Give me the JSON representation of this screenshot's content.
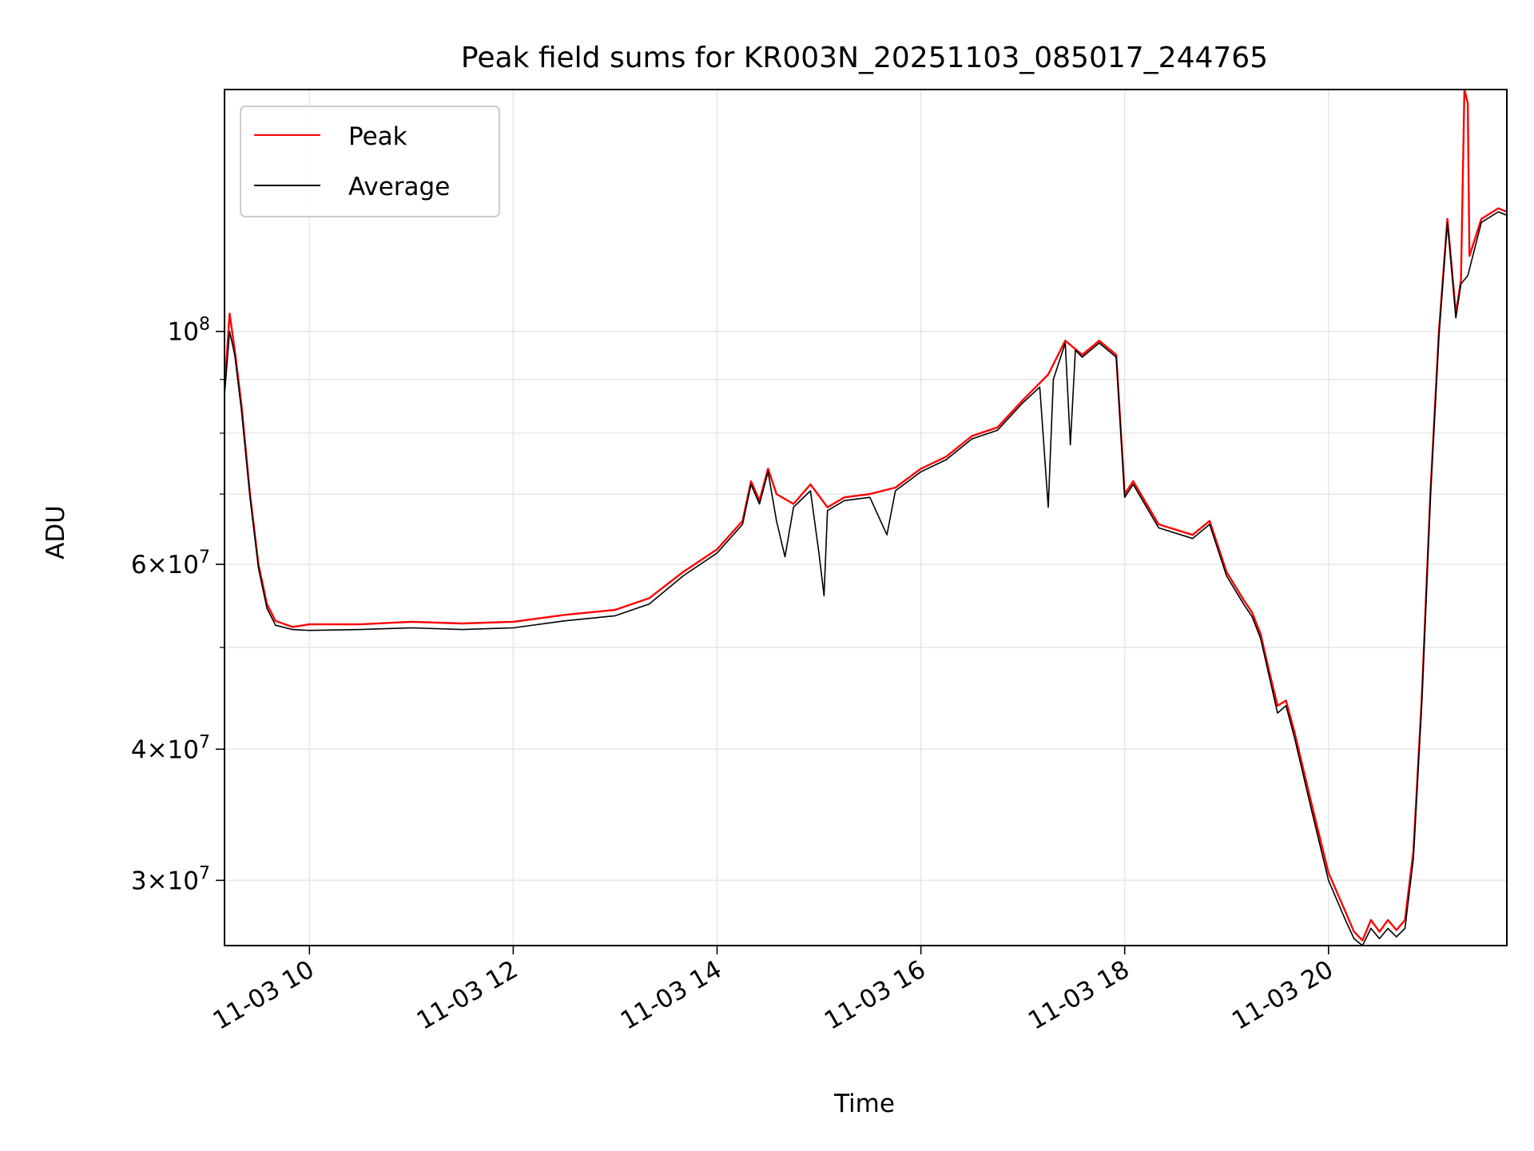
{
  "chart_data": {
    "type": "line",
    "title": "Peak field sums for KR003N_20251103_085017_244765",
    "xlabel": "Time",
    "ylabel": "ADU",
    "yscale": "log",
    "grid": true,
    "legend_position": "top-left",
    "xlim": [
      "11-03 09:10",
      "11-03 21:45"
    ],
    "ylim": [
      26000000,
      170000000
    ],
    "x_ticks": [
      "11-03 10",
      "11-03 12",
      "11-03 14",
      "11-03 16",
      "11-03 18",
      "11-03 20"
    ],
    "y_ticks": [
      {
        "value": 100000000,
        "mantissa": "",
        "exponent": "8"
      },
      {
        "value": 60000000,
        "mantissa": "6",
        "exponent": "7"
      },
      {
        "value": 40000000,
        "mantissa": "4",
        "exponent": "7"
      },
      {
        "value": 30000000,
        "mantissa": "3",
        "exponent": "7"
      }
    ],
    "y_minor_ticks": [
      50000000,
      70000000,
      80000000,
      90000000
    ],
    "series": [
      {
        "name": "Peak",
        "color": "#ff0000",
        "points": [
          [
            "11-03 09:10",
            88000000
          ],
          [
            "11-03 09:13",
            104000000
          ],
          [
            "11-03 09:16",
            96000000
          ],
          [
            "11-03 09:20",
            85000000
          ],
          [
            "11-03 09:25",
            70000000
          ],
          [
            "11-03 09:30",
            60000000
          ],
          [
            "11-03 09:35",
            55000000
          ],
          [
            "11-03 09:40",
            53000000
          ],
          [
            "11-03 09:50",
            52300000
          ],
          [
            "11-03 10:00",
            52600000
          ],
          [
            "11-03 10:30",
            52600000
          ],
          [
            "11-03 11:00",
            52900000
          ],
          [
            "11-03 11:30",
            52700000
          ],
          [
            "11-03 12:00",
            52900000
          ],
          [
            "11-03 12:30",
            53700000
          ],
          [
            "11-03 13:00",
            54300000
          ],
          [
            "11-03 13:20",
            55700000
          ],
          [
            "11-03 13:40",
            59000000
          ],
          [
            "11-03 14:00",
            62000000
          ],
          [
            "11-03 14:15",
            66000000
          ],
          [
            "11-03 14:20",
            72000000
          ],
          [
            "11-03 14:25",
            69000000
          ],
          [
            "11-03 14:30",
            74000000
          ],
          [
            "11-03 14:35",
            70000000
          ],
          [
            "11-03 14:45",
            68500000
          ],
          [
            "11-03 14:55",
            71500000
          ],
          [
            "11-03 15:05",
            68000000
          ],
          [
            "11-03 15:15",
            69500000
          ],
          [
            "11-03 15:30",
            70000000
          ],
          [
            "11-03 15:45",
            71000000
          ],
          [
            "11-03 16:00",
            74000000
          ],
          [
            "11-03 16:15",
            76000000
          ],
          [
            "11-03 16:30",
            79500000
          ],
          [
            "11-03 16:45",
            81000000
          ],
          [
            "11-03 17:00",
            86000000
          ],
          [
            "11-03 17:15",
            91000000
          ],
          [
            "11-03 17:25",
            98000000
          ],
          [
            "11-03 17:35",
            95000000
          ],
          [
            "11-03 17:45",
            98000000
          ],
          [
            "11-03 17:55",
            95000000
          ],
          [
            "11-03 18:00",
            70000000
          ],
          [
            "11-03 18:05",
            72000000
          ],
          [
            "11-03 18:20",
            65500000
          ],
          [
            "11-03 18:40",
            64000000
          ],
          [
            "11-03 18:50",
            66000000
          ],
          [
            "11-03 19:00",
            59000000
          ],
          [
            "11-03 19:10",
            55500000
          ],
          [
            "11-03 19:15",
            54000000
          ],
          [
            "11-03 19:20",
            51500000
          ],
          [
            "11-03 19:25",
            47500000
          ],
          [
            "11-03 19:30",
            44000000
          ],
          [
            "11-03 19:35",
            44500000
          ],
          [
            "11-03 19:40",
            41500000
          ],
          [
            "11-03 19:50",
            35500000
          ],
          [
            "11-03 20:00",
            30500000
          ],
          [
            "11-03 20:10",
            28000000
          ],
          [
            "11-03 20:15",
            26800000
          ],
          [
            "11-03 20:20",
            26300000
          ],
          [
            "11-03 20:25",
            27500000
          ],
          [
            "11-03 20:30",
            26800000
          ],
          [
            "11-03 20:35",
            27500000
          ],
          [
            "11-03 20:40",
            26900000
          ],
          [
            "11-03 20:45",
            27500000
          ],
          [
            "11-03 20:50",
            32000000
          ],
          [
            "11-03 20:55",
            45000000
          ],
          [
            "11-03 21:00",
            70000000
          ],
          [
            "11-03 21:05",
            100000000
          ],
          [
            "11-03 21:10",
            128000000
          ],
          [
            "11-03 21:15",
            104000000
          ],
          [
            "11-03 21:18",
            112000000
          ],
          [
            "11-03 21:20",
            170000000
          ],
          [
            "11-03 21:22",
            165000000
          ],
          [
            "11-03 21:23",
            118000000
          ],
          [
            "11-03 21:30",
            128000000
          ],
          [
            "11-03 21:40",
            131000000
          ],
          [
            "11-03 21:45",
            130000000
          ]
        ]
      },
      {
        "name": "Average",
        "color": "#000000",
        "points": [
          [
            "11-03 09:10",
            87000000
          ],
          [
            "11-03 09:13",
            100000000
          ],
          [
            "11-03 09:16",
            95000000
          ],
          [
            "11-03 09:20",
            84000000
          ],
          [
            "11-03 09:25",
            69500000
          ],
          [
            "11-03 09:30",
            59500000
          ],
          [
            "11-03 09:35",
            54500000
          ],
          [
            "11-03 09:40",
            52500000
          ],
          [
            "11-03 09:50",
            52000000
          ],
          [
            "11-03 10:00",
            51900000
          ],
          [
            "11-03 10:30",
            52000000
          ],
          [
            "11-03 11:00",
            52200000
          ],
          [
            "11-03 11:30",
            52000000
          ],
          [
            "11-03 12:00",
            52200000
          ],
          [
            "11-03 12:30",
            53000000
          ],
          [
            "11-03 13:00",
            53600000
          ],
          [
            "11-03 13:20",
            55000000
          ],
          [
            "11-03 13:40",
            58500000
          ],
          [
            "11-03 14:00",
            61500000
          ],
          [
            "11-03 14:15",
            65500000
          ],
          [
            "11-03 14:20",
            71500000
          ],
          [
            "11-03 14:25",
            68500000
          ],
          [
            "11-03 14:30",
            73500000
          ],
          [
            "11-03 14:35",
            66000000
          ],
          [
            "11-03 14:40",
            61000000
          ],
          [
            "11-03 14:45",
            68000000
          ],
          [
            "11-03 14:55",
            70500000
          ],
          [
            "11-03 15:00",
            61500000
          ],
          [
            "11-03 15:03",
            56000000
          ],
          [
            "11-03 15:05",
            67500000
          ],
          [
            "11-03 15:15",
            69000000
          ],
          [
            "11-03 15:30",
            69500000
          ],
          [
            "11-03 15:40",
            64000000
          ],
          [
            "11-03 15:45",
            70500000
          ],
          [
            "11-03 16:00",
            73500000
          ],
          [
            "11-03 16:15",
            75500000
          ],
          [
            "11-03 16:30",
            79000000
          ],
          [
            "11-03 16:45",
            80500000
          ],
          [
            "11-03 17:00",
            85500000
          ],
          [
            "11-03 17:10",
            88500000
          ],
          [
            "11-03 17:15",
            68000000
          ],
          [
            "11-03 17:18",
            90000000
          ],
          [
            "11-03 17:25",
            97500000
          ],
          [
            "11-03 17:28",
            78000000
          ],
          [
            "11-03 17:31",
            96000000
          ],
          [
            "11-03 17:35",
            94500000
          ],
          [
            "11-03 17:45",
            97500000
          ],
          [
            "11-03 17:55",
            94500000
          ],
          [
            "11-03 18:00",
            69500000
          ],
          [
            "11-03 18:05",
            71500000
          ],
          [
            "11-03 18:20",
            65000000
          ],
          [
            "11-03 18:40",
            63500000
          ],
          [
            "11-03 18:50",
            65500000
          ],
          [
            "11-03 19:00",
            58500000
          ],
          [
            "11-03 19:10",
            55000000
          ],
          [
            "11-03 19:15",
            53500000
          ],
          [
            "11-03 19:20",
            51000000
          ],
          [
            "11-03 19:25",
            47000000
          ],
          [
            "11-03 19:30",
            43300000
          ],
          [
            "11-03 19:35",
            44000000
          ],
          [
            "11-03 19:40",
            41000000
          ],
          [
            "11-03 19:50",
            35000000
          ],
          [
            "11-03 20:00",
            30000000
          ],
          [
            "11-03 20:10",
            27500000
          ],
          [
            "11-03 20:15",
            26400000
          ],
          [
            "11-03 20:20",
            26000000
          ],
          [
            "11-03 20:25",
            27000000
          ],
          [
            "11-03 20:30",
            26400000
          ],
          [
            "11-03 20:35",
            27000000
          ],
          [
            "11-03 20:40",
            26500000
          ],
          [
            "11-03 20:45",
            27000000
          ],
          [
            "11-03 20:50",
            31500000
          ],
          [
            "11-03 20:55",
            44500000
          ],
          [
            "11-03 21:00",
            69500000
          ],
          [
            "11-03 21:05",
            99000000
          ],
          [
            "11-03 21:10",
            127000000
          ],
          [
            "11-03 21:15",
            103000000
          ],
          [
            "11-03 21:18",
            111000000
          ],
          [
            "11-03 21:22",
            113000000
          ],
          [
            "11-03 21:30",
            127000000
          ],
          [
            "11-03 21:40",
            130000000
          ],
          [
            "11-03 21:45",
            129000000
          ]
        ]
      }
    ]
  }
}
